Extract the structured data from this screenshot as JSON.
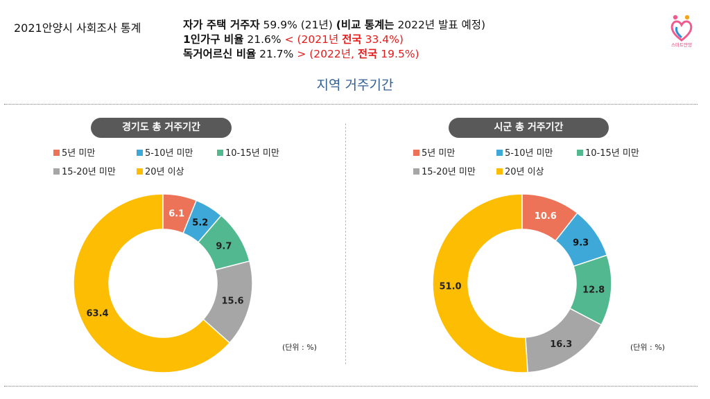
{
  "header": {
    "left": "2021안양시 사회조사 통계",
    "line1": {
      "bold1": "자가 주택 거주자",
      "normal": " 59.9% (21년) ",
      "bold2": "(비교 통계는",
      "tail": " 2022년 발표 예정)"
    },
    "line2": {
      "bold": "1인가구 비율",
      "normal": " 21.6% ",
      "red_normal": "< (2021년 ",
      "red_bold": "전국",
      "red_tail": " 33.4%)"
    },
    "line3": {
      "bold": "독거어르신 비율",
      "normal": " 21.7% ",
      "red_normal": "> (2022년, ",
      "red_bold": "전국",
      "red_tail": " 19.5%)"
    },
    "logo_text": "스마트안양"
  },
  "section_title": "지역 거주기간",
  "colors": {
    "5년 미만": "#ed7358",
    "5-10년 미만": "#3ea8d8",
    "10-15년 미만": "#52b88f",
    "15-20년 미만": "#a6a6a6",
    "20년 이상": "#fcbd02"
  },
  "chart_data": [
    {
      "type": "pie",
      "title": "경기도 총 거주기간",
      "categories": [
        "5년 미만",
        "5-10년 미만",
        "10-15년 미만",
        "15-20년 미만",
        "20년 이상"
      ],
      "values": [
        6.1,
        5.2,
        9.7,
        15.6,
        63.4
      ],
      "labels": [
        "6.1",
        "5.2",
        "9.7",
        "15.6",
        "63.4"
      ],
      "unit": "(단위 : %)",
      "legend": "top"
    },
    {
      "type": "pie",
      "title": "시군 총 거주기간",
      "categories": [
        "5년 미만",
        "5-10년 미만",
        "10-15년 미만",
        "15-20년 미만",
        "20년 이상"
      ],
      "values": [
        10.6,
        9.3,
        12.8,
        16.3,
        51.0
      ],
      "labels": [
        "10.6",
        "9.3",
        "12.8",
        "16.3",
        "51.0"
      ],
      "unit": "(단위 : %)",
      "legend": "top"
    }
  ]
}
